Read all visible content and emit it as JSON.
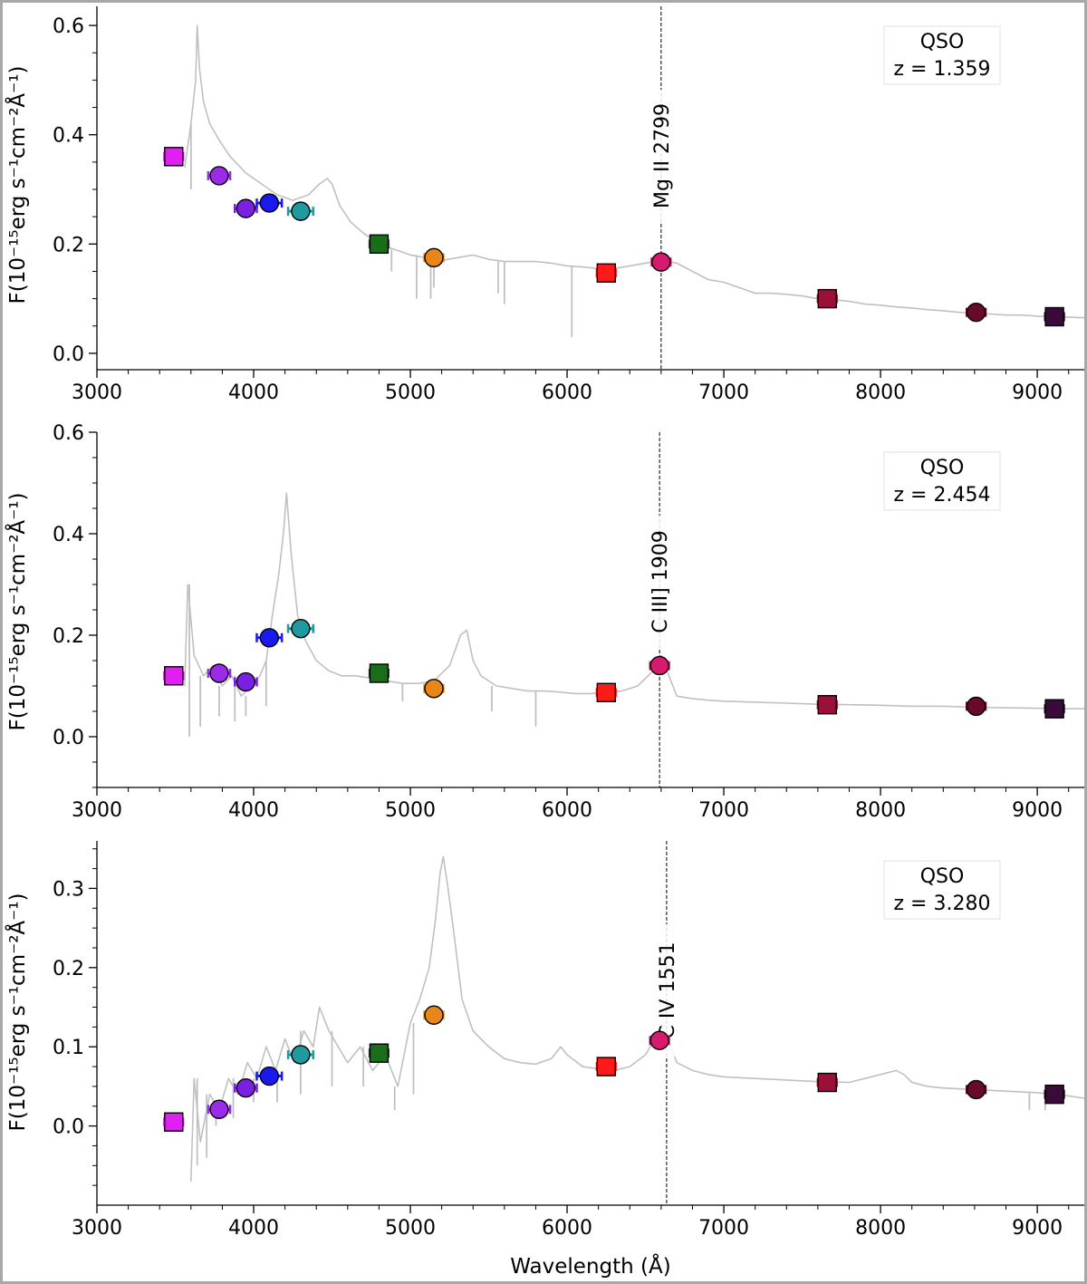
{
  "figure": {
    "xlabel": "Wavelength (Å)",
    "ylabel": "F(10⁻¹⁵erg s⁻¹cm⁻²Å⁻¹)"
  },
  "chart_data": [
    {
      "type": "line",
      "title": "QSO",
      "subtitle": "z = 1.359",
      "xlim": [
        3000,
        9300
      ],
      "ylim": [
        -0.03,
        0.635
      ],
      "xticks": [
        3000,
        4000,
        5000,
        6000,
        7000,
        8000,
        9000
      ],
      "yticks": [
        0.0,
        0.2,
        0.4,
        0.6
      ],
      "ytick_labels": [
        "0.0",
        "0.2",
        "0.4",
        "0.6"
      ],
      "line": {
        "label": "Mg II 2799",
        "x": 6600
      },
      "spectrum": {
        "color": "#c0c0c0",
        "x": [
          3560,
          3600,
          3630,
          3640,
          3655,
          3680,
          3720,
          3780,
          3850,
          3950,
          4050,
          4150,
          4250,
          4350,
          4420,
          4470,
          4500,
          4550,
          4620,
          4700,
          4800,
          4900,
          5000,
          5100,
          5200,
          5300,
          5400,
          5500,
          5600,
          5700,
          5800,
          5900,
          6000,
          6100,
          6200,
          6300,
          6400,
          6500,
          6600,
          6700,
          6800,
          6900,
          7000,
          7100,
          7200,
          7300,
          7400,
          7500,
          7600,
          7700,
          7800,
          7900,
          8000,
          8100,
          8200,
          8300,
          8400,
          8500,
          8600,
          8700,
          8800,
          8900,
          9000,
          9100,
          9200,
          9300
        ],
        "y": [
          0.34,
          0.42,
          0.5,
          0.6,
          0.52,
          0.46,
          0.42,
          0.39,
          0.36,
          0.33,
          0.31,
          0.29,
          0.28,
          0.29,
          0.31,
          0.32,
          0.31,
          0.27,
          0.24,
          0.22,
          0.2,
          0.19,
          0.18,
          0.175,
          0.17,
          0.175,
          0.18,
          0.172,
          0.168,
          0.168,
          0.168,
          0.165,
          0.16,
          0.158,
          0.155,
          0.155,
          0.16,
          0.165,
          0.17,
          0.165,
          0.15,
          0.135,
          0.13,
          0.12,
          0.11,
          0.11,
          0.108,
          0.105,
          0.1,
          0.098,
          0.095,
          0.09,
          0.088,
          0.085,
          0.083,
          0.08,
          0.078,
          0.075,
          0.073,
          0.072,
          0.07,
          0.07,
          0.068,
          0.067,
          0.066,
          0.065
        ],
        "dips": [
          {
            "x": 3600,
            "y": 0.3
          },
          {
            "x": 4880,
            "y": 0.15
          },
          {
            "x": 5040,
            "y": 0.1
          },
          {
            "x": 5130,
            "y": 0.1
          },
          {
            "x": 5150,
            "y": 0.12
          },
          {
            "x": 5560,
            "y": 0.11
          },
          {
            "x": 5600,
            "y": 0.09
          },
          {
            "x": 6030,
            "y": 0.03
          }
        ]
      },
      "photometry": [
        {
          "x": 3490,
          "y": 0.36,
          "marker": "square",
          "color": "#e020f0",
          "xerr": 60
        },
        {
          "x": 3780,
          "y": 0.325,
          "marker": "circle",
          "color": "#9a2be8",
          "xerr": 70
        },
        {
          "x": 3950,
          "y": 0.265,
          "marker": "circle",
          "color": "#7a20e0",
          "xerr": 70
        },
        {
          "x": 4100,
          "y": 0.275,
          "marker": "circle",
          "color": "#1a1aee",
          "xerr": 80
        },
        {
          "x": 4300,
          "y": 0.26,
          "marker": "circle",
          "color": "#1e9aa0",
          "xerr": 80
        },
        {
          "x": 4800,
          "y": 0.2,
          "marker": "square",
          "color": "#1a6e1a",
          "xerr": 60
        },
        {
          "x": 5150,
          "y": 0.175,
          "marker": "circle",
          "color": "#e8861a",
          "xerr": 60
        },
        {
          "x": 6250,
          "y": 0.147,
          "marker": "square",
          "color": "#ff1a1a",
          "xerr": 60
        },
        {
          "x": 6600,
          "y": 0.167,
          "marker": "circle",
          "color": "#d81a6e",
          "xerr": 60
        },
        {
          "x": 7660,
          "y": 0.1,
          "marker": "square",
          "color": "#9a1038",
          "xerr": 60
        },
        {
          "x": 8610,
          "y": 0.075,
          "marker": "circle",
          "color": "#6a0a2a",
          "xerr": 60
        },
        {
          "x": 9110,
          "y": 0.067,
          "marker": "square",
          "color": "#3a0a3a",
          "xerr": 60
        }
      ]
    },
    {
      "type": "line",
      "title": "QSO",
      "subtitle": "z = 2.454",
      "xlim": [
        3000,
        9300
      ],
      "ylim": [
        -0.1,
        0.6
      ],
      "xticks": [
        3000,
        4000,
        5000,
        6000,
        7000,
        8000,
        9000
      ],
      "yticks": [
        0.0,
        0.2,
        0.4,
        0.6
      ],
      "ytick_labels": [
        "0.0",
        "0.2",
        "0.4",
        "0.6"
      ],
      "line": {
        "label": "C III] 1909",
        "x": 6590
      },
      "spectrum": {
        "color": "#c0c0c0",
        "x": [
          3560,
          3580,
          3620,
          3680,
          3740,
          3800,
          3860,
          3920,
          3980,
          4040,
          4080,
          4120,
          4160,
          4190,
          4210,
          4240,
          4280,
          4330,
          4400,
          4480,
          4560,
          4650,
          4750,
          4850,
          4950,
          5050,
          5150,
          5250,
          5320,
          5360,
          5400,
          5450,
          5550,
          5650,
          5750,
          5850,
          5950,
          6050,
          6150,
          6250,
          6350,
          6450,
          6550,
          6600,
          6650,
          6700,
          6800,
          6900,
          7000,
          7200,
          7400,
          7600,
          7800,
          8000,
          8200,
          8400,
          8600,
          8800,
          9000,
          9200,
          9300
        ],
        "y": [
          0.1,
          0.3,
          0.16,
          0.12,
          0.14,
          0.1,
          0.12,
          0.08,
          0.1,
          0.12,
          0.15,
          0.24,
          0.32,
          0.4,
          0.48,
          0.36,
          0.24,
          0.19,
          0.15,
          0.13,
          0.12,
          0.12,
          0.115,
          0.11,
          0.105,
          0.105,
          0.11,
          0.14,
          0.2,
          0.21,
          0.15,
          0.12,
          0.1,
          0.095,
          0.09,
          0.09,
          0.088,
          0.085,
          0.085,
          0.088,
          0.09,
          0.1,
          0.13,
          0.16,
          0.12,
          0.08,
          0.075,
          0.072,
          0.07,
          0.068,
          0.066,
          0.064,
          0.063,
          0.062,
          0.06,
          0.06,
          0.058,
          0.057,
          0.056,
          0.055,
          0.055
        ],
        "dips": [
          {
            "x": 3590,
            "y": 0.0
          },
          {
            "x": 3660,
            "y": 0.02
          },
          {
            "x": 3780,
            "y": 0.04
          },
          {
            "x": 3880,
            "y": 0.03
          },
          {
            "x": 3950,
            "y": 0.04
          },
          {
            "x": 4080,
            "y": 0.06
          },
          {
            "x": 4950,
            "y": 0.07
          },
          {
            "x": 5520,
            "y": 0.05
          },
          {
            "x": 5800,
            "y": 0.02
          }
        ]
      },
      "photometry": [
        {
          "x": 3490,
          "y": 0.12,
          "marker": "square",
          "color": "#e020f0",
          "xerr": 60
        },
        {
          "x": 3780,
          "y": 0.125,
          "marker": "circle",
          "color": "#9a2be8",
          "xerr": 70
        },
        {
          "x": 3950,
          "y": 0.108,
          "marker": "circle",
          "color": "#7a20e0",
          "xerr": 70
        },
        {
          "x": 4100,
          "y": 0.195,
          "marker": "circle",
          "color": "#1a1aee",
          "xerr": 80
        },
        {
          "x": 4300,
          "y": 0.213,
          "marker": "circle",
          "color": "#1e9aa0",
          "xerr": 80
        },
        {
          "x": 4800,
          "y": 0.125,
          "marker": "square",
          "color": "#1a6e1a",
          "xerr": 60
        },
        {
          "x": 5150,
          "y": 0.095,
          "marker": "circle",
          "color": "#e8861a",
          "xerr": 60
        },
        {
          "x": 6250,
          "y": 0.087,
          "marker": "square",
          "color": "#ff1a1a",
          "xerr": 60
        },
        {
          "x": 6590,
          "y": 0.14,
          "marker": "circle",
          "color": "#d81a6e",
          "xerr": 60
        },
        {
          "x": 7660,
          "y": 0.063,
          "marker": "square",
          "color": "#9a1038",
          "xerr": 60
        },
        {
          "x": 8610,
          "y": 0.06,
          "marker": "circle",
          "color": "#6a0a2a",
          "xerr": 60
        },
        {
          "x": 9110,
          "y": 0.055,
          "marker": "square",
          "color": "#3a0a3a",
          "xerr": 60
        }
      ]
    },
    {
      "type": "line",
      "title": "QSO",
      "subtitle": "z = 3.280",
      "xlim": [
        3000,
        9300
      ],
      "ylim": [
        -0.1,
        0.36
      ],
      "xticks": [
        3000,
        4000,
        5000,
        6000,
        7000,
        8000,
        9000
      ],
      "yticks": [
        0.0,
        0.1,
        0.2,
        0.3
      ],
      "ytick_labels": [
        "0.0",
        "0.1",
        "0.2",
        "0.3"
      ],
      "line": {
        "label": "C IV 1551",
        "x": 6635
      },
      "spectrum": {
        "color": "#c0c0c0",
        "x": [
          3600,
          3620,
          3660,
          3720,
          3780,
          3840,
          3900,
          3960,
          4020,
          4080,
          4140,
          4200,
          4260,
          4320,
          4380,
          4420,
          4480,
          4540,
          4600,
          4680,
          4760,
          4840,
          4920,
          5000,
          5060,
          5120,
          5160,
          5190,
          5210,
          5240,
          5280,
          5330,
          5400,
          5500,
          5600,
          5700,
          5800,
          5900,
          5960,
          6000,
          6100,
          6200,
          6300,
          6400,
          6500,
          6560,
          6600,
          6640,
          6700,
          6800,
          6900,
          7000,
          7200,
          7400,
          7600,
          7800,
          7900,
          8000,
          8100,
          8150,
          8200,
          8300,
          8400,
          8600,
          8800,
          9000,
          9200,
          9300
        ],
        "y": [
          -0.07,
          0.06,
          -0.02,
          0.04,
          0.02,
          0.06,
          0.04,
          0.08,
          0.06,
          0.1,
          0.07,
          0.11,
          0.08,
          0.12,
          0.1,
          0.15,
          0.12,
          0.1,
          0.08,
          0.1,
          0.07,
          0.09,
          0.05,
          0.13,
          0.16,
          0.2,
          0.26,
          0.32,
          0.34,
          0.3,
          0.24,
          0.16,
          0.12,
          0.1,
          0.085,
          0.08,
          0.078,
          0.085,
          0.1,
          0.09,
          0.075,
          0.072,
          0.07,
          0.075,
          0.09,
          0.11,
          0.13,
          0.11,
          0.08,
          0.07,
          0.065,
          0.062,
          0.06,
          0.058,
          0.056,
          0.055,
          0.06,
          0.065,
          0.07,
          0.065,
          0.055,
          0.05,
          0.048,
          0.046,
          0.044,
          0.042,
          0.038,
          0.035
        ],
        "dips": [
          {
            "x": 3640,
            "y": -0.05
          },
          {
            "x": 3700,
            "y": -0.04
          },
          {
            "x": 3760,
            "y": 0.0
          },
          {
            "x": 3870,
            "y": 0.01
          },
          {
            "x": 4000,
            "y": 0.03
          },
          {
            "x": 4150,
            "y": 0.03
          },
          {
            "x": 4300,
            "y": 0.04
          },
          {
            "x": 4500,
            "y": 0.05
          },
          {
            "x": 4700,
            "y": 0.05
          },
          {
            "x": 4900,
            "y": 0.02
          },
          {
            "x": 5020,
            "y": 0.04
          },
          {
            "x": 8950,
            "y": 0.02
          },
          {
            "x": 9050,
            "y": 0.02
          }
        ]
      },
      "photometry": [
        {
          "x": 3490,
          "y": 0.005,
          "marker": "square",
          "color": "#e020f0",
          "xerr": 60
        },
        {
          "x": 3780,
          "y": 0.021,
          "marker": "circle",
          "color": "#9a2be8",
          "xerr": 70
        },
        {
          "x": 3950,
          "y": 0.048,
          "marker": "circle",
          "color": "#7a20e0",
          "xerr": 70
        },
        {
          "x": 4100,
          "y": 0.063,
          "marker": "circle",
          "color": "#1a1aee",
          "xerr": 80
        },
        {
          "x": 4300,
          "y": 0.09,
          "marker": "circle",
          "color": "#1e9aa0",
          "xerr": 80
        },
        {
          "x": 4800,
          "y": 0.092,
          "marker": "square",
          "color": "#1a6e1a",
          "xerr": 60
        },
        {
          "x": 5150,
          "y": 0.14,
          "marker": "circle",
          "color": "#e8861a",
          "xerr": 60
        },
        {
          "x": 6250,
          "y": 0.075,
          "marker": "square",
          "color": "#ff1a1a",
          "xerr": 60
        },
        {
          "x": 6590,
          "y": 0.108,
          "marker": "circle",
          "color": "#d81a6e",
          "xerr": 60
        },
        {
          "x": 7660,
          "y": 0.055,
          "marker": "square",
          "color": "#9a1038",
          "xerr": 60
        },
        {
          "x": 8610,
          "y": 0.046,
          "marker": "circle",
          "color": "#6a0a2a",
          "xerr": 60
        },
        {
          "x": 9110,
          "y": 0.04,
          "marker": "square",
          "color": "#3a0a3a",
          "xerr": 60
        }
      ]
    }
  ]
}
